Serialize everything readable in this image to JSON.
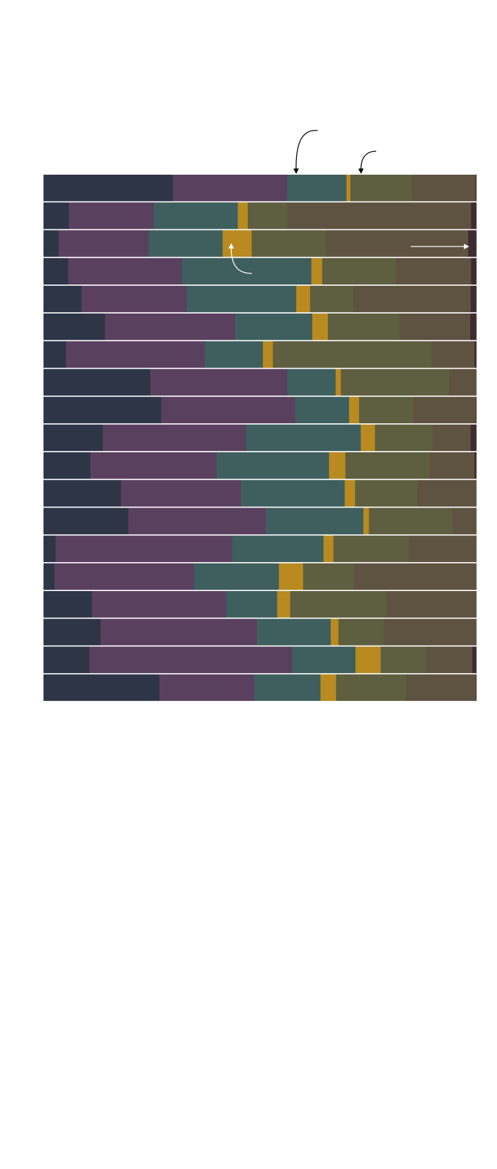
{
  "chart_data": {
    "type": "bar",
    "orientation": "horizontal",
    "stacked": true,
    "normalized": true,
    "title": "",
    "xlabel": "",
    "ylabel": "",
    "xlim": [
      0,
      100
    ],
    "grid": false,
    "legend": "none",
    "categories": [
      "",
      "",
      "",
      "",
      "",
      "",
      "",
      "",
      "",
      "",
      "",
      "",
      "",
      "",
      "",
      "",
      "",
      "",
      ""
    ],
    "series": [
      {
        "color": "#2e3547",
        "values": [
          29.9,
          5.9,
          3.5,
          5.7,
          8.8,
          14.2,
          5.2,
          24.7,
          27.1,
          13.7,
          10.9,
          17.9,
          19.6,
          2.8,
          2.5,
          11.2,
          13.2,
          10.6,
          26.8
        ]
      },
      {
        "color": "#5a405f",
        "values": [
          26.4,
          19.6,
          20.8,
          26.3,
          24.3,
          30.1,
          32.0,
          31.6,
          30.9,
          33.1,
          29.3,
          27.7,
          31.8,
          40.8,
          32.3,
          31.0,
          36.2,
          46.9,
          21.9
        ]
      },
      {
        "color": "#3e5f5d",
        "values": [
          13.7,
          19.4,
          17.1,
          29.9,
          25.3,
          17.8,
          13.5,
          11.2,
          12.4,
          26.5,
          26.1,
          24.0,
          22.5,
          21.1,
          19.6,
          11.8,
          17.1,
          14.6,
          15.3
        ]
      },
      {
        "color": "#b88a20",
        "values": [
          0.9,
          2.3,
          6.7,
          2.5,
          3.2,
          3.6,
          2.3,
          1.2,
          2.3,
          3.3,
          3.8,
          2.4,
          1.3,
          2.3,
          5.6,
          3.0,
          1.8,
          5.8,
          3.6
        ]
      },
      {
        "color": "#5e5e40",
        "values": [
          14.2,
          9.2,
          17.1,
          17.1,
          10.0,
          16.6,
          36.7,
          25.1,
          12.6,
          13.3,
          19.6,
          14.4,
          19.3,
          17.3,
          11.8,
          22.3,
          10.5,
          10.4,
          16.2
        ]
      },
      {
        "color": "#5e5241",
        "values": [
          14.7,
          42.4,
          32.9,
          17.3,
          27.1,
          16.3,
          9.9,
          6.2,
          14.3,
          8.8,
          10.4,
          13.6,
          5.5,
          15.7,
          28.2,
          20.7,
          21.4,
          10.8,
          16.1
        ]
      },
      {
        "color": "#3f2b31",
        "values": [
          0.2,
          1.2,
          1.9,
          1.2,
          1.3,
          1.4,
          0.4,
          0.0,
          0.1,
          1.3,
          0.4,
          0.0,
          0.0,
          0.0,
          0.0,
          0.0,
          0.0,
          0.9,
          0.1
        ]
      }
    ],
    "annotations": [
      {
        "type": "arrow",
        "color": "#000000",
        "target_row": 0
      },
      {
        "type": "arrow",
        "color": "#000000",
        "target_row": 0
      },
      {
        "type": "arrow",
        "color": "#ffffff",
        "target_row": 2
      },
      {
        "type": "arrow",
        "color": "#ffffff",
        "target_row": 3
      }
    ]
  }
}
